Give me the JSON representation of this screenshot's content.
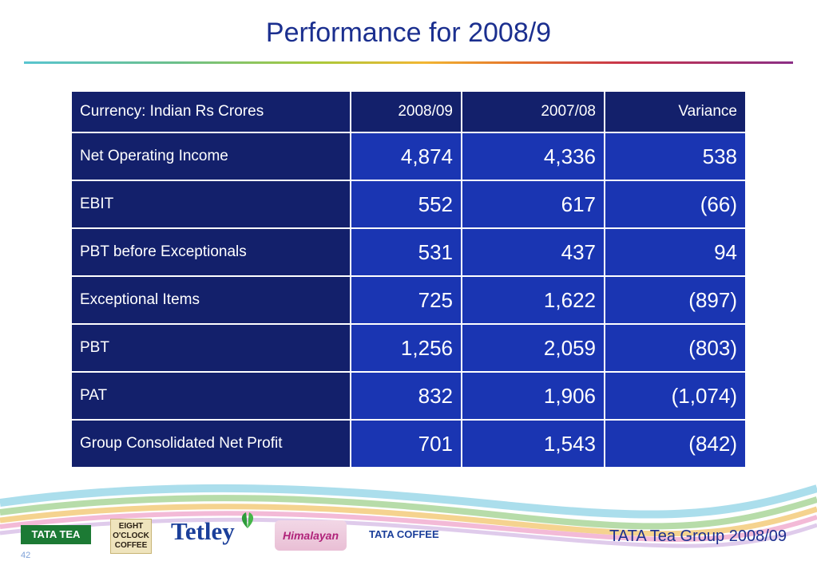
{
  "slide": {
    "title": "Performance for 2008/9",
    "footer": "TATA Tea Group 2008/09",
    "page_number": "42"
  },
  "table": {
    "headers": [
      "Currency: Indian Rs Crores",
      "2008/09",
      "2007/08",
      "Variance"
    ],
    "rows": [
      {
        "label": "Net Operating Income",
        "values": [
          "4,874",
          "4,336",
          "538"
        ]
      },
      {
        "label": "EBIT",
        "values": [
          "552",
          "617",
          "(66)"
        ]
      },
      {
        "label": "PBT before Exceptionals",
        "values": [
          "531",
          "437",
          "94"
        ]
      },
      {
        "label": "Exceptional Items",
        "values": [
          "725",
          "1,622",
          "(897)"
        ]
      },
      {
        "label": "PBT",
        "values": [
          "1,256",
          "2,059",
          "(803)"
        ]
      },
      {
        "label": "PAT",
        "values": [
          "832",
          "1,906",
          "(1,074)"
        ]
      },
      {
        "label": "Group Consolidated Net Profit",
        "values": [
          "701",
          "1,543",
          "(842)"
        ]
      }
    ]
  },
  "logos": {
    "tata_tea": "TATA TEA",
    "eight_oclock": [
      "EIGHT",
      "O'CLOCK",
      "COFFEE"
    ],
    "tetley": "Tetley",
    "himalayan": "Himalayan",
    "tata_coffee": "TATA COFFEE"
  },
  "colors": {
    "title_text": "#1b2f8f",
    "header_cell": "#13206b",
    "value_cell": "#1a35b2",
    "cell_text": "#ffffff"
  }
}
